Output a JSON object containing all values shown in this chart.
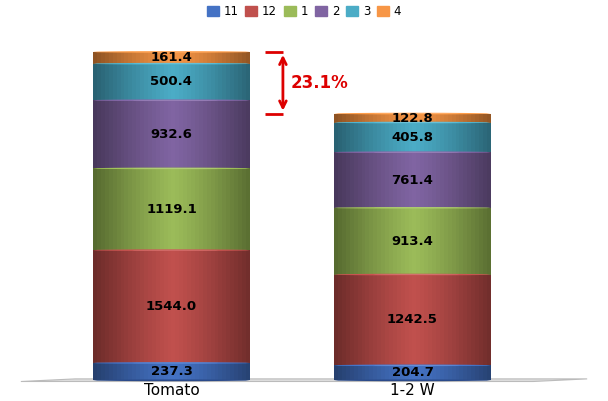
{
  "categories": [
    "Tomato",
    "1-2 W"
  ],
  "segments": [
    {
      "label": "11",
      "values": [
        237.3,
        204.7
      ],
      "color": "#4472C4",
      "dark_color": "#2A4A8A",
      "light_color": "#6699DD"
    },
    {
      "label": "12",
      "values": [
        1544.0,
        1242.5
      ],
      "color": "#C0504D",
      "dark_color": "#8B2E2E",
      "light_color": "#D47A78"
    },
    {
      "label": "1",
      "values": [
        1119.1,
        913.4
      ],
      "color": "#9BBB59",
      "dark_color": "#6A8A30",
      "light_color": "#B8D478"
    },
    {
      "label": "2",
      "values": [
        932.6,
        761.4
      ],
      "color": "#8064A2",
      "dark_color": "#5A4472",
      "light_color": "#A08AC0"
    },
    {
      "label": "3",
      "values": [
        500.4,
        405.8
      ],
      "color": "#4BACC6",
      "dark_color": "#2A7A9A",
      "light_color": "#7ACCE0"
    },
    {
      "label": "4",
      "values": [
        161.4,
        122.8
      ],
      "color": "#F79646",
      "dark_color": "#C06010",
      "light_color": "#FAB878"
    }
  ],
  "annotation_text": "23.1%",
  "annotation_color": "#DD0000",
  "background_color": "#FFFFFF",
  "legend_fontsize": 8.5,
  "label_fontsize": 9.5,
  "xlabel_fontsize": 11
}
